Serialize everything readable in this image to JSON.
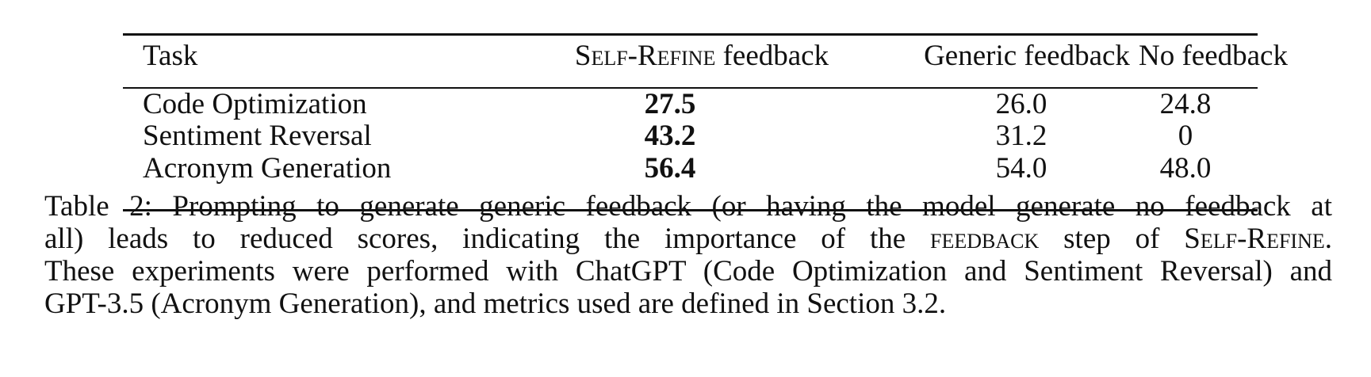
{
  "table": {
    "headers": {
      "task": "Task",
      "self_refine_sc": "Self-Refine",
      "self_refine_suffix": " feedback",
      "generic": "Generic feedback",
      "none": "No feedback"
    },
    "rows": [
      {
        "task": "Code Optimization",
        "self_refine": "27.5",
        "generic": "26.0",
        "none": "24.8"
      },
      {
        "task": "Sentiment Reversal",
        "self_refine": "43.2",
        "generic": "31.2",
        "none": "0"
      },
      {
        "task": "Acronym Generation",
        "self_refine": "56.4",
        "generic": "54.0",
        "none": "48.0"
      }
    ]
  },
  "caption": {
    "line1": "Table 2: Prompting to generate generic feedback (or having the model generate no feedback at",
    "line2_pre": "all) leads to reduced scores, indicating the importance of the ",
    "line2_sc1": "feedback",
    "line2_mid": " step of ",
    "line2_sc2": "Self-Refine",
    "line2_post": ".",
    "line3": "These experiments were performed with ChatGPT (Code Optimization and Sentiment Reversal) and",
    "line4": "GPT-3.5 (Acronym Generation), and metrics used are defined in Section 3.2."
  }
}
